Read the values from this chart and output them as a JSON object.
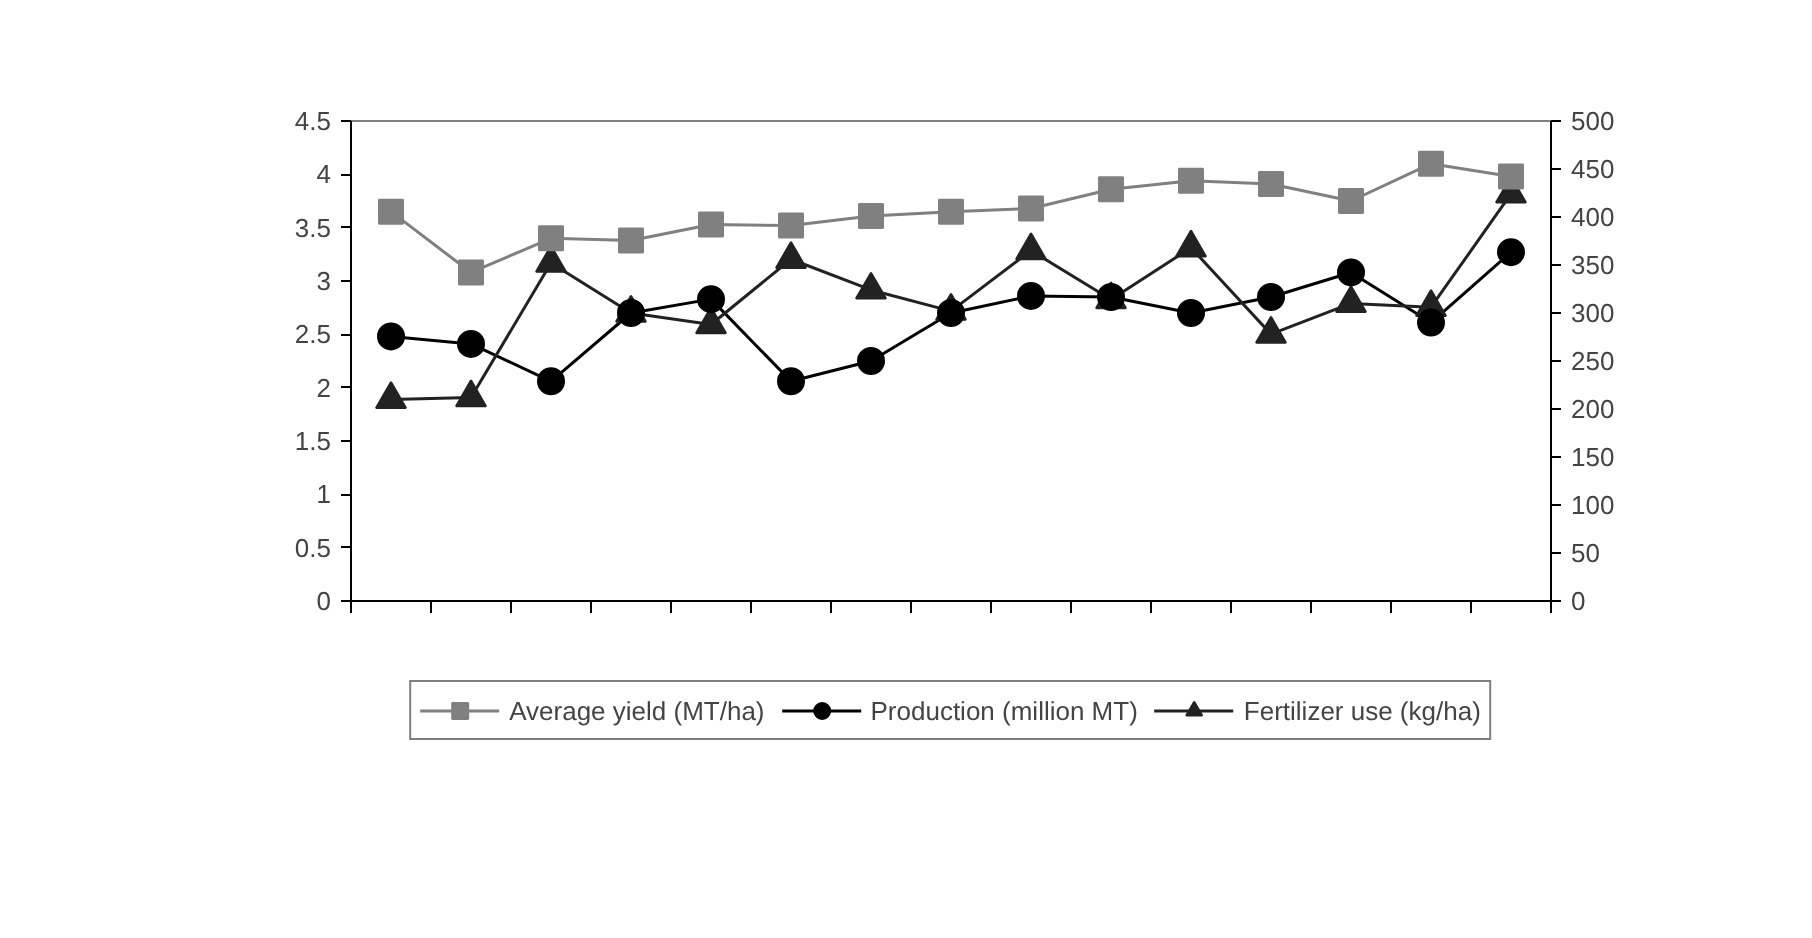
{
  "chart_data": {
    "type": "line",
    "categories": [
      null,
      null,
      null,
      null,
      null,
      null,
      null,
      null,
      null,
      null,
      null,
      null,
      null,
      null,
      null
    ],
    "series": [
      {
        "name": "Average yield (MT/ha)",
        "color": "#808080",
        "marker": "square",
        "values": [
          3.65,
          3.08,
          3.4,
          3.38,
          3.53,
          3.52,
          3.61,
          3.65,
          3.68,
          3.86,
          3.94,
          3.91,
          3.75,
          4.1,
          3.98
        ]
      },
      {
        "name": "Production (million MT)",
        "color": "#000000",
        "marker": "circle",
        "values": [
          2.48,
          2.41,
          2.06,
          2.7,
          2.83,
          2.06,
          2.25,
          2.7,
          2.86,
          2.85,
          2.7,
          2.85,
          3.08,
          2.61,
          3.27
        ]
      },
      {
        "name": "Fertilizer use (kg/ha)",
        "color": "#222222",
        "marker": "triangle",
        "axis": "y2",
        "values": [
          210,
          212,
          352,
          300,
          288,
          356,
          324,
          302,
          365,
          314,
          368,
          278,
          310,
          306,
          424
        ]
      }
    ],
    "ylim": [
      0,
      4.5
    ],
    "yticks": [
      0,
      0.5,
      1,
      1.5,
      2,
      2.5,
      3,
      3.5,
      4,
      4.5
    ],
    "y2lim": [
      0,
      500
    ],
    "y2ticks": [
      0,
      50,
      100,
      150,
      200,
      250,
      300,
      350,
      400,
      450,
      500
    ],
    "tick_labels": "y",
    "grid": false,
    "legend": "bottom",
    "line_style": "solid"
  }
}
